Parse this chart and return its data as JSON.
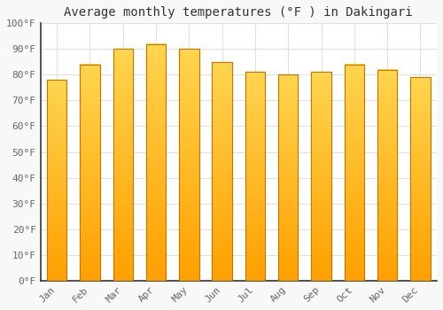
{
  "title": "Average monthly temperatures (°F ) in Dakingari",
  "months": [
    "Jan",
    "Feb",
    "Mar",
    "Apr",
    "May",
    "Jun",
    "Jul",
    "Aug",
    "Sep",
    "Oct",
    "Nov",
    "Dec"
  ],
  "values": [
    78,
    84,
    90,
    92,
    90,
    85,
    81,
    80,
    81,
    84,
    82,
    79
  ],
  "bar_color_top": "#FFCC44",
  "bar_color_bottom": "#F5A000",
  "bar_edge_color": "#C07800",
  "ylim": [
    0,
    100
  ],
  "yticks": [
    0,
    10,
    20,
    30,
    40,
    50,
    60,
    70,
    80,
    90,
    100
  ],
  "background_color": "#F8F8F8",
  "plot_bg_color": "#FFFFFF",
  "grid_color": "#E0E0E0",
  "title_fontsize": 10,
  "tick_fontsize": 8,
  "spine_color": "#333333"
}
